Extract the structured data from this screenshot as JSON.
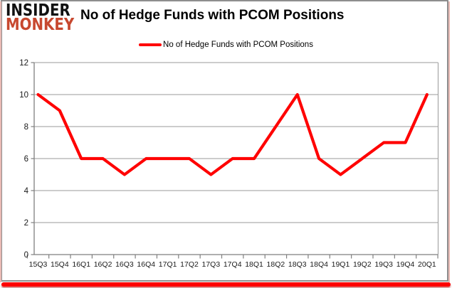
{
  "logo": {
    "line1": "INSIDER",
    "line2": "MONKEY"
  },
  "header": {
    "title": "No of Hedge Funds with PCOM Positions"
  },
  "legend": {
    "label": "No of Hedge Funds with PCOM Positions"
  },
  "chart_data": {
    "type": "line",
    "title": "No of Hedge Funds with PCOM Positions",
    "categories": [
      "15Q3",
      "15Q4",
      "16Q1",
      "16Q2",
      "16Q3",
      "16Q4",
      "17Q1",
      "17Q2",
      "17Q3",
      "17Q4",
      "18Q1",
      "18Q2",
      "18Q3",
      "18Q4",
      "19Q1",
      "19Q2",
      "19Q3",
      "19Q4",
      "20Q1"
    ],
    "series": [
      {
        "name": "No of Hedge Funds with PCOM Positions",
        "color": "#FF0000",
        "values": [
          10,
          9,
          6,
          6,
          5,
          6,
          6,
          6,
          5,
          6,
          6,
          8,
          10,
          6,
          5,
          6,
          7,
          7,
          10
        ]
      }
    ],
    "ylim": [
      0,
      12
    ],
    "yticks": [
      0,
      2,
      4,
      6,
      8,
      10,
      12
    ],
    "grid": true,
    "legend_position": "top-center"
  },
  "colors": {
    "line": "#FF0000",
    "logo_monkey": "#C7482F",
    "logo_insider": "#111111",
    "grid": "#9A9A9A",
    "axis": "#7F7F7F",
    "tick_label": "#1A1A1A",
    "frame_bottom": "#FE0000",
    "frame_side_pink": "#E9BAB4",
    "frame_gray": "#8E8E8E",
    "background": "#FFFFFF"
  }
}
